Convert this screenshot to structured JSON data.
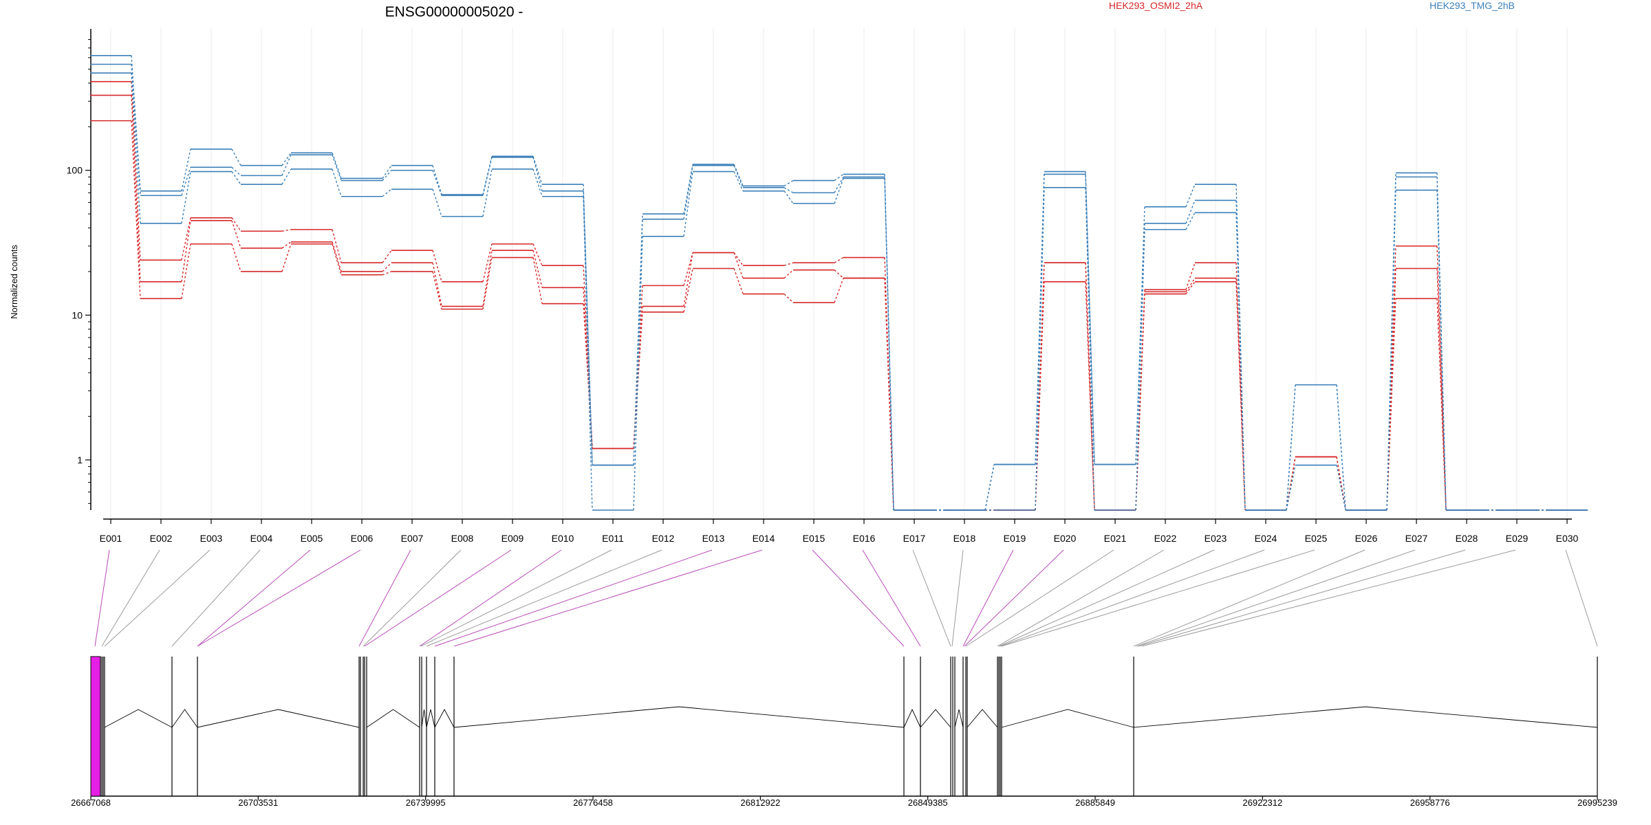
{
  "chart_data": {
    "type": "line",
    "title": "ENSG00000005020 -",
    "ylabel": "Normalized counts",
    "xlabel": "",
    "yscale": "log",
    "ylim": [
      0.45,
      850
    ],
    "yticks": [
      1,
      10,
      100
    ],
    "ytick_labels": [
      "1",
      "10",
      "100"
    ],
    "grid": true,
    "legend_position": "top",
    "categories": [
      "E001",
      "E002",
      "E003",
      "E004",
      "E005",
      "E006",
      "E007",
      "E008",
      "E009",
      "E010",
      "E011",
      "E012",
      "E013",
      "E014",
      "E015",
      "E016",
      "E017",
      "E018",
      "E019",
      "E020",
      "E021",
      "E022",
      "E023",
      "E024",
      "E025",
      "E026",
      "E027",
      "E028",
      "E029",
      "E030"
    ],
    "groups": [
      {
        "name": "HEK293_OSMI2_2hA",
        "color": "#d62728"
      },
      {
        "name": "HEK293_TMG_2hB",
        "color": "#3a7fb8"
      }
    ],
    "series": [
      {
        "group": 0,
        "values": [
          410,
          24,
          47,
          38,
          39,
          23,
          28,
          17,
          31,
          22,
          1.2,
          16,
          27,
          22,
          23,
          25,
          0.45,
          0.45,
          0.45,
          23,
          0.45,
          15,
          23,
          0.45,
          1.05,
          0.45,
          30,
          0.45,
          0.45,
          0.45
        ]
      },
      {
        "group": 0,
        "values": [
          330,
          17,
          45,
          29,
          32,
          20,
          23,
          11.5,
          28,
          15.5,
          1.2,
          11.5,
          27,
          18,
          20.5,
          18,
          0.45,
          0.45,
          0.45,
          23,
          0.45,
          14.5,
          18,
          0.45,
          1.05,
          0.45,
          21,
          0.45,
          0.45,
          0.45
        ]
      },
      {
        "group": 0,
        "values": [
          220,
          13,
          31,
          20,
          31,
          19,
          20,
          11,
          25,
          12,
          1.2,
          10.5,
          21,
          14,
          12.2,
          18,
          0.45,
          0.45,
          0.45,
          17,
          0.45,
          14,
          17,
          0.45,
          1.05,
          0.45,
          13,
          0.45,
          0.45,
          0.45
        ]
      },
      {
        "group": 1,
        "values": [
          620,
          72,
          140,
          108,
          132,
          88,
          108,
          68,
          125,
          80,
          0.92,
          50,
          110,
          78,
          85,
          94,
          0.45,
          0.45,
          0.93,
          98,
          0.93,
          56,
          80,
          0.45,
          3.3,
          0.45,
          96,
          0.45,
          0.45,
          0.45
        ]
      },
      {
        "group": 1,
        "values": [
          540,
          67,
          105,
          92,
          128,
          85,
          100,
          67,
          123,
          72,
          0.92,
          46,
          108,
          76,
          70,
          90,
          0.45,
          0.45,
          0.93,
          94,
          0.93,
          43,
          62,
          0.45,
          3.3,
          0.45,
          90,
          0.45,
          0.45,
          0.45
        ]
      },
      {
        "group": 1,
        "values": [
          470,
          43,
          98,
          80,
          102,
          66,
          74,
          48,
          102,
          66,
          0.45,
          35,
          98,
          72,
          59,
          88,
          0.45,
          0.45,
          0.45,
          76,
          0.45,
          39,
          51,
          0.45,
          0.92,
          0.45,
          73,
          0.45,
          0.45,
          0.45
        ]
      }
    ],
    "exon_track": {
      "genomic_ticks": [
        "26667068",
        "26703531",
        "26739995",
        "26776458",
        "26812922",
        "26849385",
        "26885849",
        "26922312",
        "26958776",
        "26995239"
      ],
      "highlight_color": "#e51fe5",
      "highlighted_exons": [
        "E001",
        "E005",
        "E006",
        "E007",
        "E009",
        "E010",
        "E013",
        "E014",
        "E015",
        "E016",
        "E019",
        "E020"
      ]
    }
  }
}
